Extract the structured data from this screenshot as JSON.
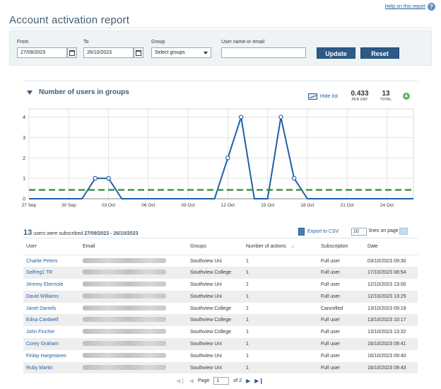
{
  "help": {
    "link_label": "Help on this report",
    "icon": "help-icon"
  },
  "page_title": "Account activation report",
  "filters": {
    "from_label": "From",
    "from_value": "27/09/2023",
    "to_label": "To",
    "to_value": "26/10/2023",
    "group_label": "Group",
    "group_value": "Select groups",
    "user_label": "User name or email",
    "user_value": "",
    "update_label": "Update",
    "reset_label": "Reset"
  },
  "chart_header": {
    "title": "Number of users in groups",
    "hide_list_label": "Hide list",
    "per_day_value": "0.433",
    "per_day_label": "PER DAY",
    "total_value": "13",
    "total_label": "TOTAL"
  },
  "chart_data": {
    "type": "line",
    "title": "Number of users in groups",
    "x": [
      "2023-09-27",
      "2023-09-28",
      "2023-09-29",
      "2023-09-30",
      "2023-10-01",
      "2023-10-02",
      "2023-10-03",
      "2023-10-04",
      "2023-10-05",
      "2023-10-06",
      "2023-10-07",
      "2023-10-08",
      "2023-10-09",
      "2023-10-10",
      "2023-10-11",
      "2023-10-12",
      "2023-10-13",
      "2023-10-14",
      "2023-10-15",
      "2023-10-16",
      "2023-10-17",
      "2023-10-18",
      "2023-10-19",
      "2023-10-20",
      "2023-10-21",
      "2023-10-22",
      "2023-10-23",
      "2023-10-24",
      "2023-10-25",
      "2023-10-26"
    ],
    "tick_labels": [
      "27 Sep",
      "30 Sep",
      "03 Oct",
      "06 Oct",
      "09 Oct",
      "12 Oct",
      "15 Oct",
      "18 Oct",
      "21 Oct",
      "24 Oct"
    ],
    "y_ticks": [
      "0",
      "1",
      "2",
      "3",
      "4"
    ],
    "series": [
      {
        "values": [
          0,
          0,
          0,
          0,
          0,
          1,
          1,
          0,
          0,
          0,
          0,
          0,
          0,
          0,
          0,
          2,
          4,
          0,
          0,
          4,
          1,
          0,
          0,
          0,
          0,
          0,
          0,
          0,
          0,
          0
        ],
        "color": "#1f5fa6",
        "markers": [
          5,
          6,
          15,
          16,
          19,
          20
        ]
      },
      {
        "values": [
          0.433,
          0.433,
          0.433,
          0.433,
          0.433,
          0.433,
          0.433,
          0.433,
          0.433,
          0.433,
          0.433,
          0.433,
          0.433,
          0.433,
          0.433,
          0.433,
          0.433,
          0.433,
          0.433,
          0.433,
          0.433,
          0.433,
          0.433,
          0.433,
          0.433,
          0.433,
          0.433,
          0.433,
          0.433,
          0.433
        ],
        "color": "#2e8b3a",
        "style": "dashed"
      }
    ],
    "ylim": [
      0,
      4.4
    ],
    "grid": true,
    "xlabel": "",
    "ylabel": ""
  },
  "table": {
    "summary_count": "13",
    "summary_text": "users were subscribed",
    "summary_range": "27/09/2023 - 26/10/2023",
    "export_label": "Export to CSV",
    "lines_value": "10",
    "lines_label": "lines on page",
    "columns": [
      "User",
      "Email",
      "Groups",
      "Number of actions",
      "Subscription",
      "Date"
    ],
    "rows": [
      {
        "user": "Charlie Peters",
        "groups": "Southview Uni",
        "actions": "1",
        "subscription": "Full user",
        "date": "03/10/2023 09:30"
      },
      {
        "user": "Selfreg1 TR",
        "groups": "Southview College",
        "actions": "1",
        "subscription": "Full user",
        "date": "17/10/2023 08:54"
      },
      {
        "user": "Jeremy Ebersole",
        "groups": "Southview Uni",
        "actions": "1",
        "subscription": "Full user",
        "date": "12/10/2023 13:00"
      },
      {
        "user": "David Williams",
        "groups": "Southview Uni",
        "actions": "1",
        "subscription": "Full user",
        "date": "12/10/2023 13:25"
      },
      {
        "user": "Janet Daniels",
        "groups": "Southview College",
        "actions": "1",
        "subscription": "Cancelled",
        "date": "13/10/2023 09:19"
      },
      {
        "user": "Edna Cardwell",
        "groups": "Southview College",
        "actions": "1",
        "subscription": "Full user",
        "date": "13/10/2023 10:17"
      },
      {
        "user": "John Fincher",
        "groups": "Southview College",
        "actions": "1",
        "subscription": "Full user",
        "date": "13/10/2023 13:32"
      },
      {
        "user": "Corey Graham",
        "groups": "Southview Uni",
        "actions": "1",
        "subscription": "Full user",
        "date": "16/10/2023 09:41"
      },
      {
        "user": "Finlay Hargreaves",
        "groups": "Southview Uni",
        "actions": "1",
        "subscription": "Full user",
        "date": "16/10/2023 09:40"
      },
      {
        "user": "Ruby Martin",
        "groups": "Southview Uni",
        "actions": "1",
        "subscription": "Full user",
        "date": "16/10/2023 09:43"
      }
    ]
  },
  "pager": {
    "page_label": "Page",
    "page_value": "1",
    "of_label": "of 2"
  }
}
